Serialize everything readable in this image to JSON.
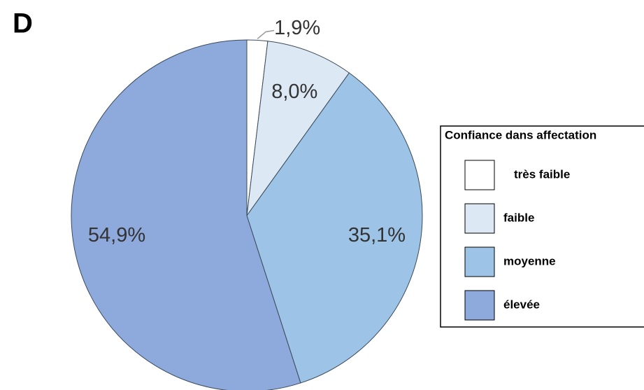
{
  "chart_data": {
    "type": "pie",
    "title": "D",
    "categories": [
      "très faible",
      "faible",
      "moyenne",
      "élevée"
    ],
    "values": [
      1.9,
      8.0,
      35.1,
      54.9
    ],
    "value_labels": [
      "1,9%",
      "8,0%",
      "35,1%",
      "54,9%"
    ],
    "colors": [
      "#ffffff",
      "#dde8f5",
      "#9dc3e6",
      "#8eaadc"
    ],
    "legend": {
      "title": "Confiance dans affectation",
      "position": "right"
    }
  }
}
